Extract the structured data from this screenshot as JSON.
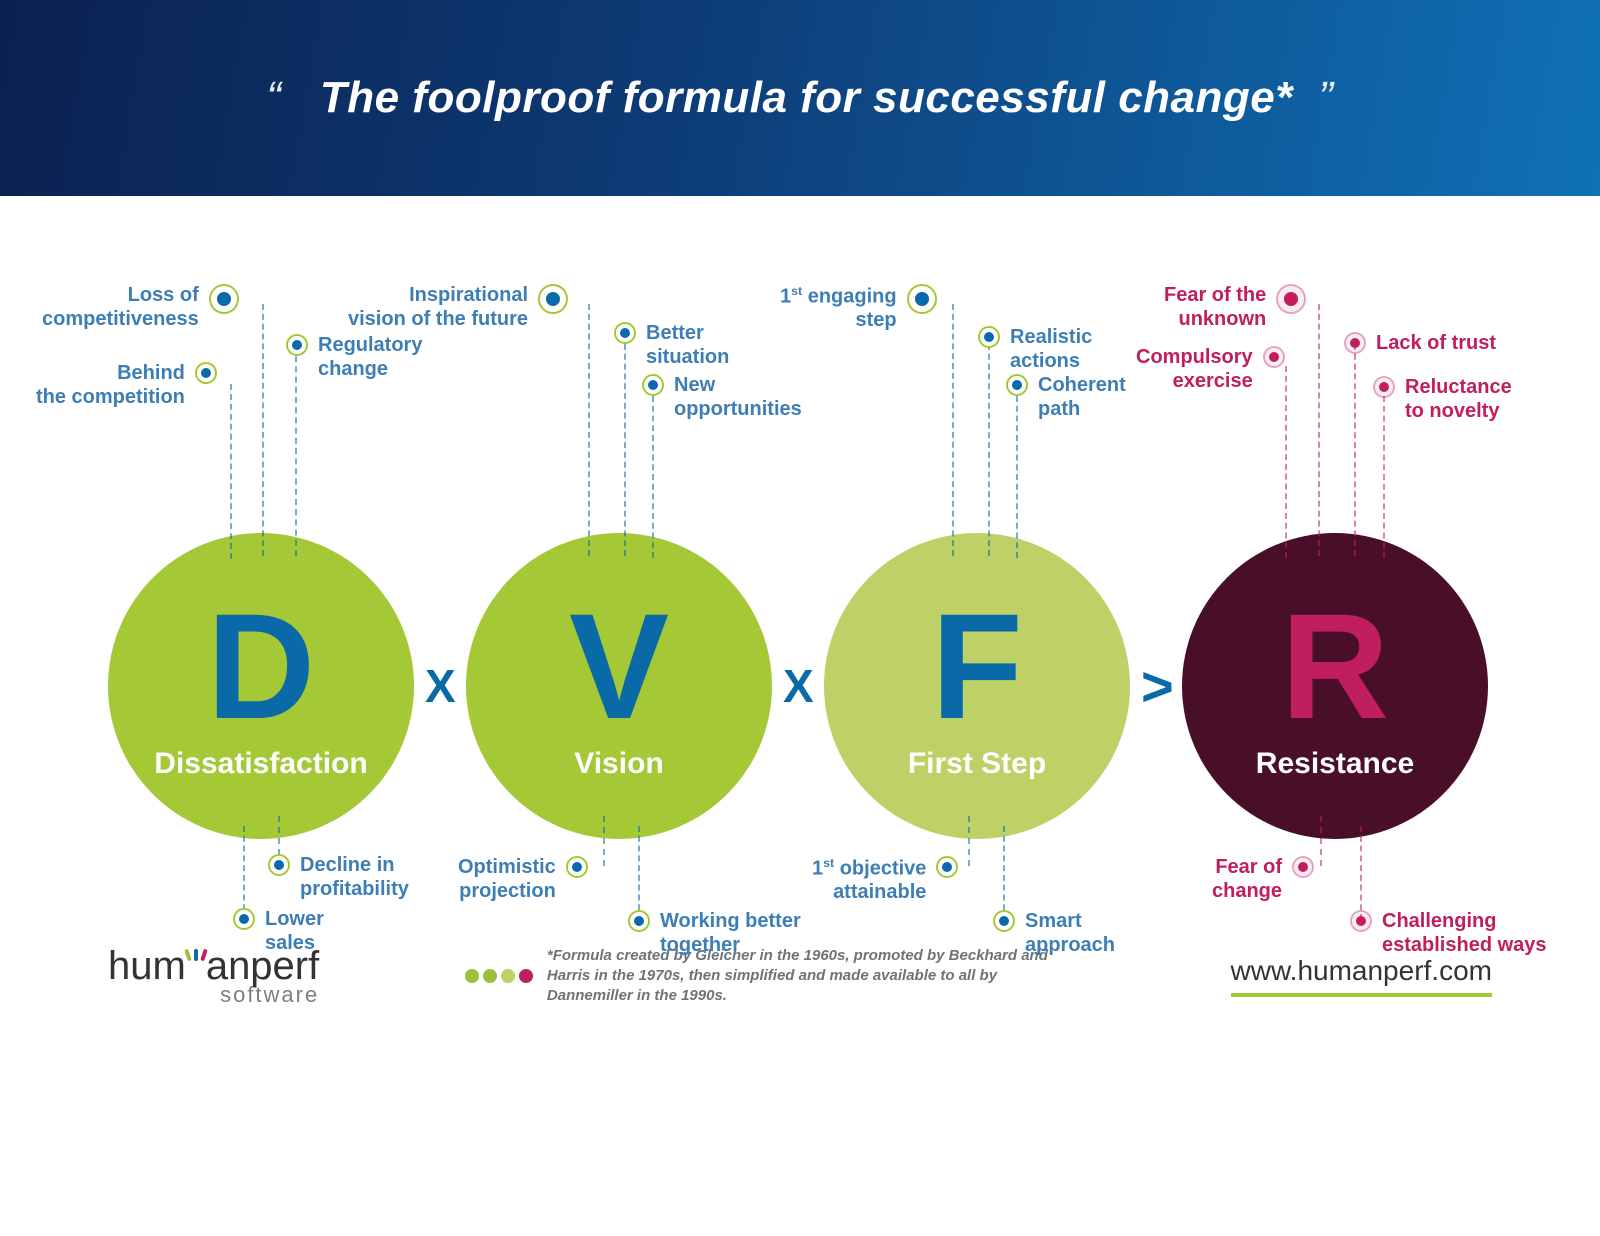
{
  "header": {
    "title": "The foolproof formula for successful change*",
    "quote_open": "“",
    "quote_close": "”"
  },
  "formula": {
    "operators": {
      "times": "X",
      "gt": ">"
    },
    "bubbles": [
      {
        "letter": "D",
        "label": "Dissatisfaction",
        "bg": "#a5c837",
        "letter_color": "#0a6aa8"
      },
      {
        "letter": "V",
        "label": "Vision",
        "bg": "#a5c837",
        "letter_color": "#0a6aa8"
      },
      {
        "letter": "F",
        "label": "First Step",
        "bg": "#bdd166",
        "letter_color": "#0a6aa8"
      },
      {
        "letter": "R",
        "label": "Resistance",
        "bg": "#4a0f28",
        "letter_color": "#c01e5e"
      }
    ]
  },
  "annotations": {
    "d_top": [
      {
        "text": "Loss of\ncompetitiveness",
        "size": "big"
      },
      {
        "text": "Regulatory\nchange",
        "size": "small"
      },
      {
        "text": "Behind\nthe competition",
        "size": "small"
      }
    ],
    "d_bottom": [
      {
        "text": "Decline in\nprofitability",
        "size": "small"
      },
      {
        "text": "Lower\nsales",
        "size": "small"
      }
    ],
    "v_top": [
      {
        "text": "Inspirational\nvision of the future",
        "size": "big"
      },
      {
        "text": "Better\nsituation",
        "size": "small"
      },
      {
        "text": "New\nopportunities",
        "size": "small"
      }
    ],
    "v_bottom": [
      {
        "text": "Optimistic\nprojection",
        "size": "small"
      },
      {
        "text": "Working better\ntogether",
        "size": "small"
      }
    ],
    "f_top": [
      {
        "text_html": "1<sup>st</sup> engaging\nstep",
        "size": "big"
      },
      {
        "text": "Realistic\nactions",
        "size": "small"
      },
      {
        "text": "Coherent\npath",
        "size": "small"
      }
    ],
    "f_bottom": [
      {
        "text_html": "1<sup>st</sup> objective\nattainable",
        "size": "small"
      },
      {
        "text": "Smart\napproach",
        "size": "small"
      }
    ],
    "r_top": [
      {
        "text": "Fear of the\nunknown",
        "size": "big"
      },
      {
        "text": "Lack of trust",
        "size": "small"
      },
      {
        "text": "Compulsory\nexercise",
        "size": "small"
      },
      {
        "text": "Reluctance\nto novelty",
        "size": "small"
      }
    ],
    "r_bottom": [
      {
        "text": "Fear of\nchange",
        "size": "small"
      },
      {
        "text": "Challenging\nestablished ways",
        "size": "small"
      }
    ]
  },
  "footer": {
    "logo_main": "hum",
    "logo_main2": "nperf",
    "logo_a": "a",
    "logo_sub": "software",
    "note": "*Formula created by Gleicher in the 1960s, promoted by Beckhard and Harris in the 1970s,\nthen simplified and made available to all by Dannemiller in the 1990s.",
    "url": "www.humanperf.com",
    "accent_colors": [
      "#9fbf3b",
      "#0a6aa8",
      "#c01e5e"
    ],
    "dot_colors": [
      "#9fbf3b",
      "#9fbf3b",
      "#bdd166",
      "#c01e5e"
    ]
  },
  "colors": {
    "green_main": "#a5c837",
    "green_light": "#bdd166",
    "blue_dark": "#0a6aa8",
    "blue_text": "#3d7eb5",
    "magenta": "#c01e5e",
    "maroon": "#4a0f28"
  }
}
